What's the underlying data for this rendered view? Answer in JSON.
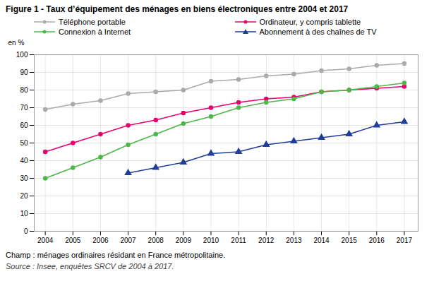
{
  "chart_data": {
    "type": "line",
    "title": "Figure 1 - Taux d’équipement des ménages en biens électroniques entre 2004 et 2017",
    "ylabel": "en %",
    "x": [
      2004,
      2005,
      2006,
      2007,
      2008,
      2009,
      2010,
      2011,
      2012,
      2013,
      2014,
      2015,
      2016,
      2017
    ],
    "series": [
      {
        "name": "Téléphone portable",
        "color": "#aaaaaa",
        "marker": "circle",
        "values": [
          69,
          72,
          74,
          78,
          79,
          80,
          85,
          86,
          88,
          89,
          91,
          92,
          94,
          95
        ]
      },
      {
        "name": "Ordinateur, y compris tablette",
        "color": "#e8006e",
        "marker": "circle",
        "values": [
          45,
          50,
          55,
          60,
          63,
          67,
          70,
          73,
          75,
          76,
          79,
          80,
          81,
          82
        ]
      },
      {
        "name": "Connexion à Internet",
        "color": "#4db848",
        "marker": "circle",
        "values": [
          30,
          36,
          42,
          49,
          55,
          61,
          65,
          70,
          73,
          75,
          79,
          80,
          82,
          84
        ]
      },
      {
        "name": "Abonnement à des chaînes de TV",
        "color": "#1f3d99",
        "marker": "triangle",
        "values": [
          null,
          null,
          null,
          33,
          36,
          39,
          44,
          45,
          49,
          51,
          53,
          55,
          60,
          62
        ]
      }
    ],
    "xlim": [
      2003.6,
      2017.5
    ],
    "xticks": [
      2004,
      2005,
      2006,
      2007,
      2008,
      2009,
      2010,
      2011,
      2012,
      2013,
      2014,
      2015,
      2016,
      2017
    ],
    "ylim": [
      0,
      100
    ],
    "yticks": [
      0,
      10,
      20,
      30,
      40,
      50,
      60,
      70,
      80,
      90,
      100
    ],
    "grid": true,
    "legend": "top",
    "annotations": [
      "Champ : ménages ordinaires résidant en France métropolitaine.",
      "Source : Insee, enquêtes SRCV de 2004 à 2017."
    ]
  }
}
